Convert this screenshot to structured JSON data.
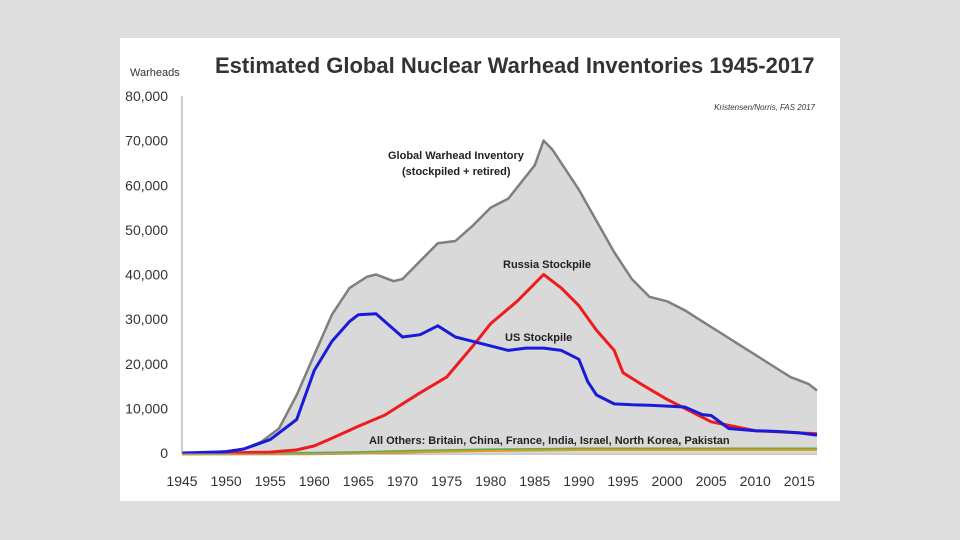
{
  "chart_data": {
    "type": "line",
    "title": "Estimated Global Nuclear Warhead Inventories 1945-2017",
    "ylabel": "Warheads",
    "xlabel": "",
    "credit": "Kristensen/Norris, FAS 2017",
    "xlim": [
      1945,
      2017
    ],
    "ylim": [
      0,
      80000
    ],
    "xticks": [
      1945,
      1950,
      1955,
      1960,
      1965,
      1970,
      1975,
      1980,
      1985,
      1990,
      1995,
      2000,
      2005,
      2010,
      2015
    ],
    "yticks": [
      0,
      10000,
      20000,
      30000,
      40000,
      50000,
      60000,
      70000,
      80000
    ],
    "ytick_labels": [
      "0",
      "10,000",
      "20,000",
      "30,000",
      "40,000",
      "50,000",
      "60,000",
      "70,000",
      "80,000"
    ],
    "annotations": {
      "global_line1": "Global Warhead Inventory",
      "global_line2": "(stockpiled + retired)",
      "russia": "Russia Stockpile",
      "us": "US Stockpile",
      "others": "All Others: Britain, China, France, India, Israel, North Korea, Pakistan"
    },
    "colors": {
      "global_fill": "#d9d9d9",
      "global_line": "#7f7f7f",
      "russia": "#ee1c1c",
      "us": "#1a1adb",
      "others": "#d6a020",
      "others2": "#6aa84f"
    },
    "series": [
      {
        "name": "Global Warhead Inventory",
        "x": [
          1945,
          1948,
          1950,
          1952,
          1954,
          1956,
          1958,
          1960,
          1962,
          1964,
          1966,
          1967,
          1969,
          1970,
          1972,
          1974,
          1976,
          1978,
          1980,
          1982,
          1984,
          1985,
          1986,
          1987,
          1988,
          1990,
          1992,
          1994,
          1996,
          1998,
          2000,
          2002,
          2004,
          2006,
          2008,
          2010,
          2012,
          2014,
          2016,
          2017
        ],
        "values": [
          2,
          100,
          400,
          900,
          2500,
          5500,
          13000,
          22000,
          31000,
          37000,
          39500,
          40000,
          38500,
          39000,
          43000,
          47000,
          47500,
          51000,
          55000,
          57000,
          62000,
          64500,
          70000,
          68000,
          65000,
          59000,
          52000,
          45000,
          39000,
          35000,
          34000,
          32000,
          29500,
          27000,
          24500,
          22000,
          19500,
          17000,
          15500,
          14000
        ]
      },
      {
        "name": "Russia Stockpile",
        "x": [
          1945,
          1950,
          1955,
          1958,
          1960,
          1962,
          1965,
          1968,
          1970,
          1972,
          1975,
          1978,
          1980,
          1983,
          1985,
          1986,
          1988,
          1990,
          1992,
          1994,
          1995,
          1997,
          2000,
          2003,
          2005,
          2008,
          2010,
          2015,
          2017
        ],
        "values": [
          0,
          5,
          200,
          700,
          1600,
          3300,
          6000,
          8500,
          11000,
          13500,
          17000,
          24000,
          29000,
          34000,
          38000,
          40000,
          37000,
          33000,
          27500,
          23000,
          18000,
          15500,
          12000,
          9000,
          7000,
          5800,
          5000,
          4500,
          4300
        ]
      },
      {
        "name": "US Stockpile",
        "x": [
          1945,
          1950,
          1952,
          1955,
          1958,
          1960,
          1962,
          1964,
          1965,
          1967,
          1970,
          1972,
          1974,
          1976,
          1978,
          1980,
          1982,
          1984,
          1986,
          1988,
          1989,
          1990,
          1991,
          1992,
          1994,
          1996,
          1998,
          2000,
          2002,
          2004,
          2005,
          2007,
          2010,
          2013,
          2015,
          2017
        ],
        "values": [
          2,
          300,
          900,
          3000,
          7500,
          18500,
          25000,
          29500,
          31000,
          31200,
          26000,
          26500,
          28500,
          26000,
          25000,
          24000,
          23000,
          23500,
          23500,
          23000,
          22000,
          21000,
          16000,
          13000,
          11000,
          10800,
          10700,
          10500,
          10300,
          8600,
          8400,
          5500,
          5000,
          4800,
          4500,
          4000
        ]
      },
      {
        "name": "All Others",
        "x": [
          1945,
          1955,
          1960,
          1965,
          1970,
          1975,
          1980,
          1985,
          1990,
          1995,
          2000,
          2005,
          2010,
          2017
        ],
        "values": [
          0,
          20,
          60,
          200,
          450,
          650,
          800,
          900,
          1000,
          1000,
          1000,
          1000,
          1000,
          1000
        ]
      }
    ]
  }
}
